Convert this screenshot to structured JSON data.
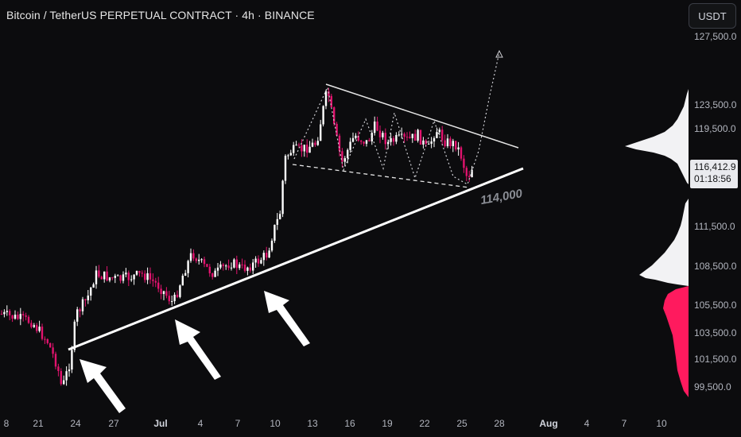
{
  "header": {
    "title": "Bitcoin / TetherUS PERPETUAL CONTRACT · 4h · BINANCE",
    "currency_button": "USDT"
  },
  "price_axis": {
    "labels": [
      "127,500.0",
      "123,500.0",
      "119,500.0",
      "111,500.0",
      "108,500.0",
      "105,500.0",
      "103,500.0",
      "101,500.0",
      "99,500.0"
    ]
  },
  "current_price": {
    "value": "116,412.9",
    "countdown": "01:18:56"
  },
  "time_axis": {
    "labels": [
      {
        "text": "8",
        "bold": false
      },
      {
        "text": "21",
        "bold": false
      },
      {
        "text": "24",
        "bold": false
      },
      {
        "text": "27",
        "bold": false
      },
      {
        "text": "Jul",
        "bold": true
      },
      {
        "text": "4",
        "bold": false
      },
      {
        "text": "7",
        "bold": false
      },
      {
        "text": "10",
        "bold": false
      },
      {
        "text": "13",
        "bold": false
      },
      {
        "text": "16",
        "bold": false
      },
      {
        "text": "19",
        "bold": false
      },
      {
        "text": "22",
        "bold": false
      },
      {
        "text": "25",
        "bold": false
      },
      {
        "text": "28",
        "bold": false
      },
      {
        "text": "Aug",
        "bold": true
      },
      {
        "text": "4",
        "bold": false
      },
      {
        "text": "7",
        "bold": false
      },
      {
        "text": "10",
        "bold": false
      }
    ]
  },
  "annotations": {
    "support_level": "114,000"
  },
  "colors": {
    "background": "#0c0c0e",
    "up_candle": "#ffffff",
    "down_candle": "#e2136e",
    "volume_profile_upper": "#ffffff",
    "volume_profile_lower": "#ff1a5e"
  }
}
